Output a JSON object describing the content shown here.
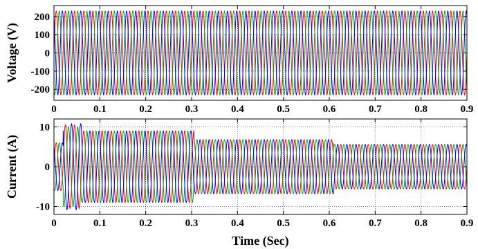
{
  "chart_data": [
    {
      "type": "line",
      "ylabel": "Voltage (V)",
      "xlabel": "",
      "xlim": [
        0,
        0.9
      ],
      "ylim": [
        -260,
        260
      ],
      "xticks": [
        0,
        0.1,
        0.2,
        0.3,
        0.4,
        0.5,
        0.6,
        0.7,
        0.8,
        0.9
      ],
      "xtick_labels": [
        "0",
        "0.1",
        "0.2",
        "0.3",
        "0.4",
        "0.5",
        "0.6",
        "0.7",
        "0.8",
        "0.9"
      ],
      "yticks": [
        -200,
        -100,
        0,
        100,
        200
      ],
      "ytick_labels": [
        "-200",
        "-100",
        "0",
        "100",
        "200"
      ],
      "grid": true,
      "frequency_hz": 50,
      "series": [
        {
          "color": "#ff0000",
          "phase_deg": 0,
          "segments": [
            {
              "t0": 0,
              "t1": 0.9,
              "amplitude": 230
            }
          ]
        },
        {
          "color": "#00aa00",
          "phase_deg": -120,
          "segments": [
            {
              "t0": 0,
              "t1": 0.9,
              "amplitude": 230
            }
          ]
        },
        {
          "color": "#0000ff",
          "phase_deg": 120,
          "segments": [
            {
              "t0": 0,
              "t1": 0.9,
              "amplitude": 230
            }
          ]
        }
      ]
    },
    {
      "type": "line",
      "ylabel": "Current (A)",
      "xlabel": "Time (Sec)",
      "xlim": [
        0,
        0.9
      ],
      "ylim": [
        -12,
        12
      ],
      "xticks": [
        0,
        0.1,
        0.2,
        0.3,
        0.4,
        0.5,
        0.6,
        0.7,
        0.8,
        0.9
      ],
      "xtick_labels": [
        "0",
        "0.1",
        "0.2",
        "0.3",
        "0.4",
        "0.5",
        "0.6",
        "0.7",
        "0.8",
        "0.9"
      ],
      "yticks": [
        -10,
        0,
        10
      ],
      "ytick_labels": [
        "-10",
        "0",
        "10"
      ],
      "grid": true,
      "frequency_hz": 50,
      "series": [
        {
          "color": "#ff0000",
          "phase_deg": 0,
          "segments": [
            {
              "t0": 0,
              "t1": 0.02,
              "amplitude": 6
            },
            {
              "t0": 0.02,
              "t1": 0.06,
              "amplitude": 10.5
            },
            {
              "t0": 0.06,
              "t1": 0.305,
              "amplitude": 9
            },
            {
              "t0": 0.305,
              "t1": 0.61,
              "amplitude": 6.8
            },
            {
              "t0": 0.61,
              "t1": 0.9,
              "amplitude": 5.6
            }
          ]
        },
        {
          "color": "#00aa00",
          "phase_deg": -120,
          "segments": [
            {
              "t0": 0,
              "t1": 0.02,
              "amplitude": 6
            },
            {
              "t0": 0.02,
              "t1": 0.06,
              "amplitude": 10
            },
            {
              "t0": 0.06,
              "t1": 0.305,
              "amplitude": 9
            },
            {
              "t0": 0.305,
              "t1": 0.61,
              "amplitude": 6.8
            },
            {
              "t0": 0.61,
              "t1": 0.9,
              "amplitude": 5.6
            }
          ]
        },
        {
          "color": "#0000ff",
          "phase_deg": 120,
          "segments": [
            {
              "t0": 0,
              "t1": 0.02,
              "amplitude": 6
            },
            {
              "t0": 0.02,
              "t1": 0.06,
              "amplitude": 10.8
            },
            {
              "t0": 0.06,
              "t1": 0.305,
              "amplitude": 9
            },
            {
              "t0": 0.305,
              "t1": 0.61,
              "amplitude": 6.8
            },
            {
              "t0": 0.61,
              "t1": 0.9,
              "amplitude": 5.6
            }
          ]
        }
      ]
    }
  ]
}
